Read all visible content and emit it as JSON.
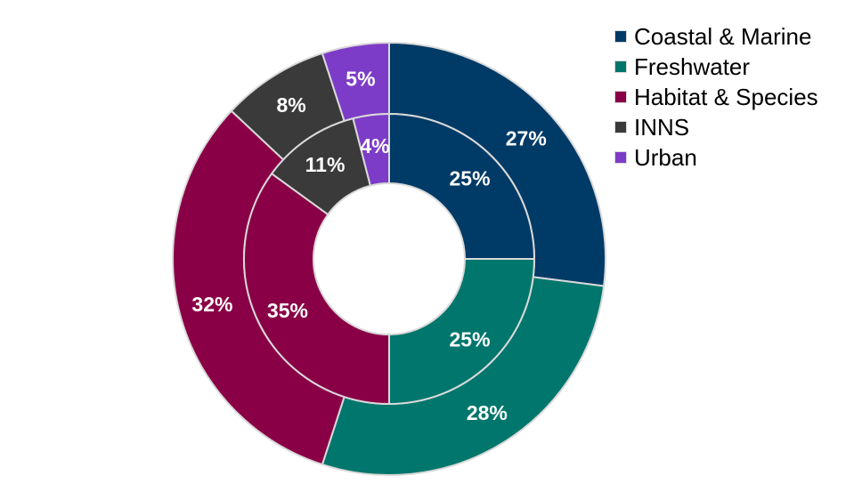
{
  "chart_data": {
    "type": "pie",
    "variant": "nested-donut",
    "legend_position": "right",
    "categories": [
      "Coastal & Marine",
      "Freshwater",
      "Habitat & Species",
      "INNS",
      "Urban"
    ],
    "colors": [
      "#003A66",
      "#00766C",
      "#8A0046",
      "#3A3A3A",
      "#7D3CC8"
    ],
    "series": [
      {
        "ring": "outer",
        "values": [
          27,
          28,
          32,
          8,
          5
        ],
        "labels": [
          "27%",
          "28%",
          "32%",
          "8%",
          "5%"
        ]
      },
      {
        "ring": "inner",
        "values": [
          25,
          25,
          35,
          11,
          4
        ],
        "labels": [
          "25%",
          "25%",
          "35%",
          "11%",
          "4%"
        ]
      }
    ]
  }
}
